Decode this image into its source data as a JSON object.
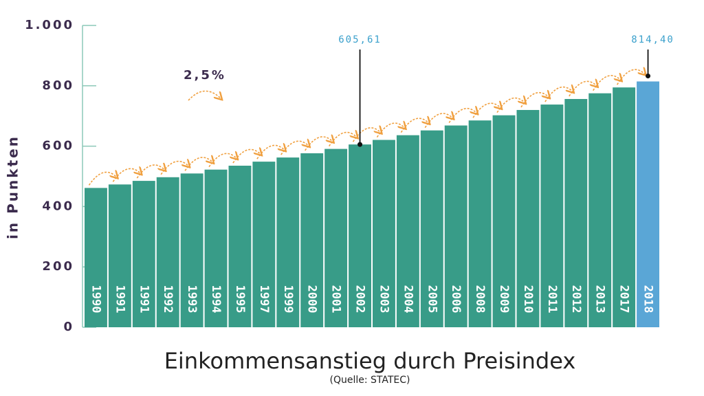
{
  "chart_data": {
    "type": "bar",
    "title": "Einkommensanstieg durch Preisindex",
    "subtitle": "(Quelle: STATEC)",
    "y_label": "in Punkten",
    "annotation": "2,5%",
    "categories": [
      "1990",
      "1991",
      "1991",
      "1992",
      "1993",
      "1994",
      "1995",
      "1997",
      "1999",
      "2000",
      "2001",
      "2002",
      "2003",
      "2004",
      "2005",
      "2006",
      "2008",
      "2009",
      "2010",
      "2011",
      "2012",
      "2013",
      "2017",
      "2018"
    ],
    "values": [
      461.6,
      473.1,
      485.0,
      497.1,
      509.5,
      522.3,
      535.3,
      548.7,
      562.4,
      576.5,
      590.9,
      605.61,
      620.7,
      636.3,
      652.2,
      668.5,
      685.2,
      702.3,
      719.9,
      737.9,
      756.3,
      775.2,
      794.6,
      814.4
    ],
    "value_labels": [
      null,
      null,
      null,
      null,
      null,
      null,
      null,
      null,
      null,
      null,
      null,
      "605,61",
      null,
      null,
      null,
      null,
      null,
      null,
      null,
      null,
      null,
      null,
      null,
      "814,40"
    ],
    "colors": [
      "#389c88",
      "#389c88",
      "#389c88",
      "#389c88",
      "#389c88",
      "#389c88",
      "#389c88",
      "#389c88",
      "#389c88",
      "#389c88",
      "#389c88",
      "#389c88",
      "#389c88",
      "#389c88",
      "#389c88",
      "#389c88",
      "#389c88",
      "#389c88",
      "#389c88",
      "#389c88",
      "#389c88",
      "#389c88",
      "#389c88",
      "#5aa6d6"
    ],
    "ylim": [
      0,
      1000
    ],
    "yticks": [
      0,
      200,
      400,
      600,
      800,
      {
        "value": 1000,
        "label": "1.000"
      }
    ]
  }
}
